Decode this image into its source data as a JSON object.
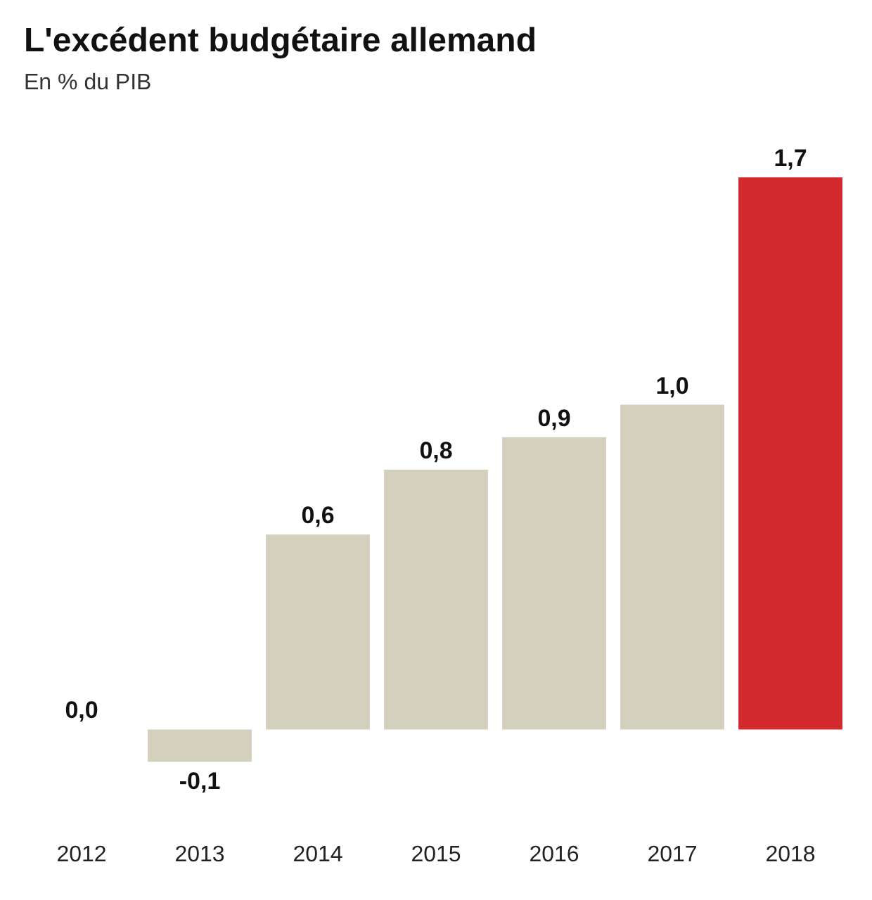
{
  "chart_data": {
    "type": "bar",
    "title": "L'excédent budgétaire allemand",
    "subtitle": "En % du PIB",
    "categories": [
      "2012",
      "2013",
      "2014",
      "2015",
      "2016",
      "2017",
      "2018"
    ],
    "values": [
      0.0,
      -0.1,
      0.6,
      0.8,
      0.9,
      1.0,
      1.7
    ],
    "colors": [
      "#d3d0be",
      "#d3d0be",
      "#d3d0be",
      "#d3d0be",
      "#d3d0be",
      "#d3d0be",
      "#d32a2e"
    ],
    "value_labels": [
      "0,0",
      "-0,1",
      "0,6",
      "0,8",
      "0,9",
      "1,0",
      "1,7"
    ]
  }
}
